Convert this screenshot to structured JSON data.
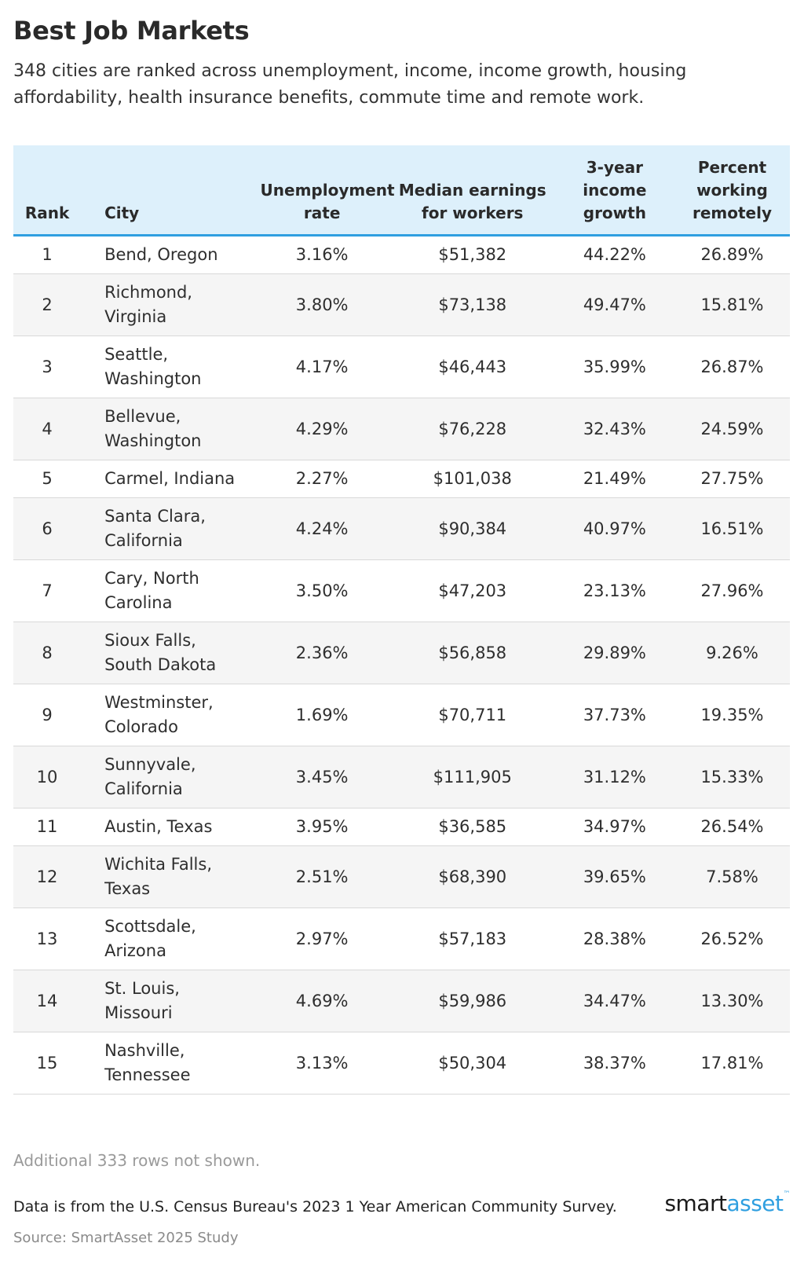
{
  "header": {
    "title": "Best Job Markets",
    "subtitle": "348 cities are ranked across unemployment, income, income growth, housing affordability, health insurance benefits, commute time and remote work."
  },
  "table": {
    "columns": [
      "Rank",
      "City",
      "Unemployment rate",
      "Median earnings for workers",
      "3-year income growth",
      "Percent working remotely"
    ]
  },
  "chart_data": {
    "type": "table",
    "title": "Best Job Markets",
    "columns": [
      "Rank",
      "City",
      "Unemployment rate",
      "Median earnings for workers",
      "3-year income growth",
      "Percent working remotely"
    ],
    "rows": [
      [
        "1",
        "Bend, Oregon",
        "3.16%",
        "$51,382",
        "44.22%",
        "26.89%"
      ],
      [
        "2",
        "Richmond, Virginia",
        "3.80%",
        "$73,138",
        "49.47%",
        "15.81%"
      ],
      [
        "3",
        "Seattle, Washington",
        "4.17%",
        "$46,443",
        "35.99%",
        "26.87%"
      ],
      [
        "4",
        "Bellevue, Washington",
        "4.29%",
        "$76,228",
        "32.43%",
        "24.59%"
      ],
      [
        "5",
        "Carmel, Indiana",
        "2.27%",
        "$101,038",
        "21.49%",
        "27.75%"
      ],
      [
        "6",
        "Santa Clara, California",
        "4.24%",
        "$90,384",
        "40.97%",
        "16.51%"
      ],
      [
        "7",
        "Cary, North Carolina",
        "3.50%",
        "$47,203",
        "23.13%",
        "27.96%"
      ],
      [
        "8",
        "Sioux Falls, South Dakota",
        "2.36%",
        "$56,858",
        "29.89%",
        "9.26%"
      ],
      [
        "9",
        "Westminster, Colorado",
        "1.69%",
        "$70,711",
        "37.73%",
        "19.35%"
      ],
      [
        "10",
        "Sunnyvale, California",
        "3.45%",
        "$111,905",
        "31.12%",
        "15.33%"
      ],
      [
        "11",
        "Austin, Texas",
        "3.95%",
        "$36,585",
        "34.97%",
        "26.54%"
      ],
      [
        "12",
        "Wichita Falls, Texas",
        "2.51%",
        "$68,390",
        "39.65%",
        "7.58%"
      ],
      [
        "13",
        "Scottsdale, Arizona",
        "2.97%",
        "$57,183",
        "28.38%",
        "26.52%"
      ],
      [
        "14",
        "St. Louis, Missouri",
        "4.69%",
        "$59,986",
        "34.47%",
        "13.30%"
      ],
      [
        "15",
        "Nashville, Tennessee",
        "3.13%",
        "$50,304",
        "38.37%",
        "17.81%"
      ]
    ]
  },
  "footer": {
    "rows_note": "Additional 333 rows not shown.",
    "data_source": "Data is from the U.S. Census Bureau's 2023 1 Year American Community Survey.",
    "credit": "Source: SmartAsset 2025 Study",
    "logo_part1": "smart",
    "logo_part2": "asset",
    "logo_mark": "™"
  },
  "colors": {
    "header_bg": "#ddf0fb",
    "header_rule": "#2f9fe0",
    "stripe": "#f5f5f5",
    "brand_blue": "#2f9fe0"
  }
}
